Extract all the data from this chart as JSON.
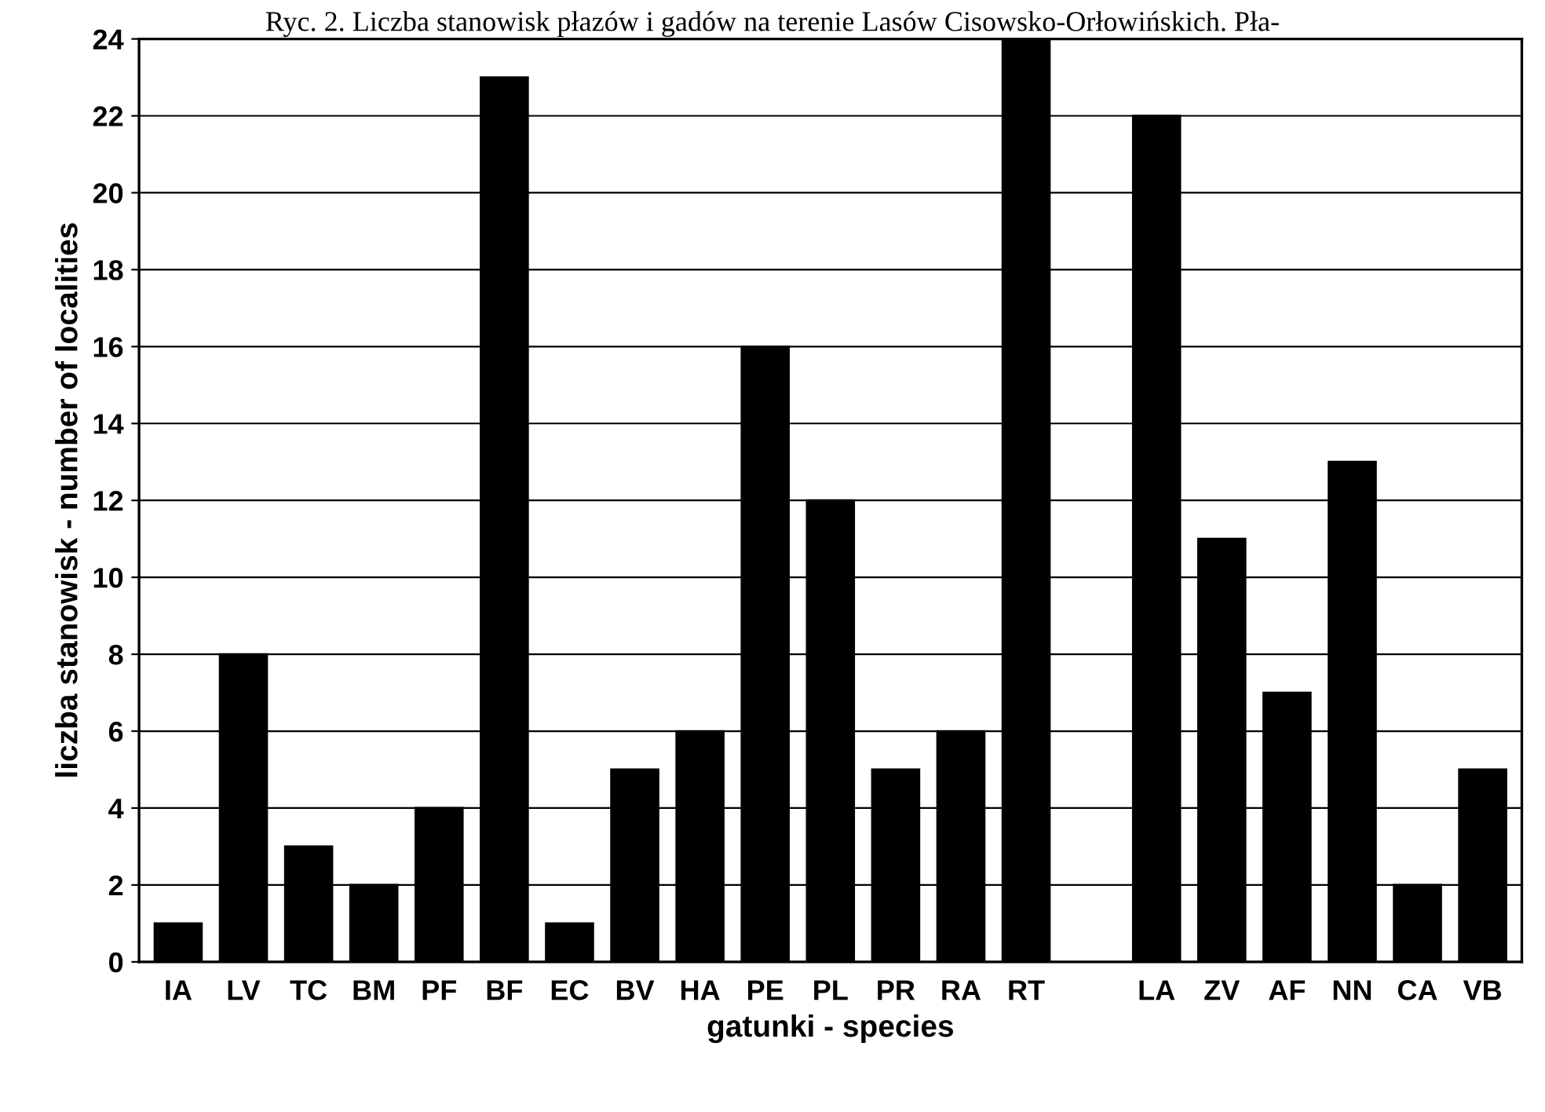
{
  "chart_data": {
    "type": "bar",
    "title": "Ryc. 2. Liczba stanowisk płazów i gadów na terenie Lasów Cisowsko-Orłowińskich. Pła-",
    "xlabel": "gatunki - species",
    "ylabel": "liczba stanowisk - number of localities",
    "categories": [
      "IA",
      "LV",
      "TC",
      "BM",
      "PF",
      "BF",
      "EC",
      "BV",
      "HA",
      "PE",
      "PL",
      "PR",
      "RA",
      "RT",
      null,
      "LA",
      "ZV",
      "AF",
      "NN",
      "CA",
      "VB"
    ],
    "values": [
      1,
      8,
      3,
      2,
      4,
      23,
      1,
      5,
      6,
      16,
      12,
      5,
      6,
      24,
      null,
      22,
      11,
      7,
      13,
      2,
      5
    ],
    "color": "#000000",
    "ylim": [
      0,
      24
    ],
    "yticks": [
      0,
      2,
      4,
      6,
      8,
      10,
      12,
      14,
      16,
      18,
      20,
      22,
      24
    ],
    "grid": "y"
  }
}
